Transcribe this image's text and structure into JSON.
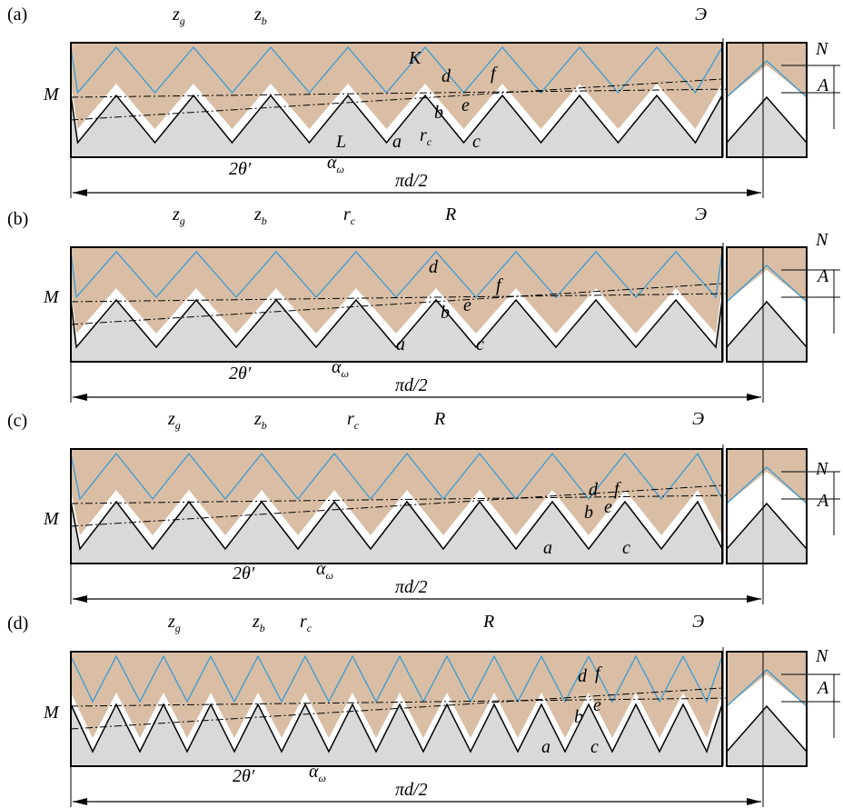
{
  "panels": [
    {
      "label": "(a)",
      "texts": [
        {
          "main": "z",
          "sub": "g"
        },
        {
          "main": "z",
          "sub": "b"
        },
        {
          "main": "Э"
        },
        {
          "main": "N"
        },
        {
          "main": "A"
        },
        {
          "main": "M"
        },
        {
          "main": "K"
        },
        {
          "main": "d"
        },
        {
          "main": "f"
        },
        {
          "main": "b"
        },
        {
          "main": "e"
        },
        {
          "main": "L"
        },
        {
          "main": "a"
        },
        {
          "main": "r",
          "sub": "c"
        },
        {
          "main": "c"
        },
        {
          "main": "2θ′"
        },
        {
          "main": "α",
          "sub": "ω"
        },
        {
          "main": "πd/2"
        }
      ]
    },
    {
      "label": "(b)",
      "texts": [
        {
          "main": "z",
          "sub": "g"
        },
        {
          "main": "z",
          "sub": "b"
        },
        {
          "main": "r",
          "sub": "c"
        },
        {
          "main": "R"
        },
        {
          "main": "Э"
        },
        {
          "main": "N"
        },
        {
          "main": "A"
        },
        {
          "main": "M"
        },
        {
          "main": "d"
        },
        {
          "main": "f"
        },
        {
          "main": "b"
        },
        {
          "main": "e"
        },
        {
          "main": "a"
        },
        {
          "main": "c"
        },
        {
          "main": "2θ′"
        },
        {
          "main": "α",
          "sub": "ω"
        },
        {
          "main": "πd/2"
        }
      ]
    },
    {
      "label": "(c)",
      "texts": [
        {
          "main": "z",
          "sub": "g"
        },
        {
          "main": "z",
          "sub": "b"
        },
        {
          "main": "r",
          "sub": "c"
        },
        {
          "main": "R"
        },
        {
          "main": "Э"
        },
        {
          "main": "N"
        },
        {
          "main": "A"
        },
        {
          "main": "M"
        },
        {
          "main": "d"
        },
        {
          "main": "f"
        },
        {
          "main": "b"
        },
        {
          "main": "e"
        },
        {
          "main": "a"
        },
        {
          "main": "c"
        },
        {
          "main": "2θ′"
        },
        {
          "main": "α",
          "sub": "ω"
        },
        {
          "main": "πd/2"
        }
      ]
    },
    {
      "label": "(d)",
      "texts": [
        {
          "main": "z",
          "sub": "g"
        },
        {
          "main": "z",
          "sub": "b"
        },
        {
          "main": "r",
          "sub": "c"
        },
        {
          "main": "R"
        },
        {
          "main": "Э"
        },
        {
          "main": "N"
        },
        {
          "main": "A"
        },
        {
          "main": "M"
        },
        {
          "main": "d"
        },
        {
          "main": "f"
        },
        {
          "main": "b"
        },
        {
          "main": "e"
        },
        {
          "main": "a"
        },
        {
          "main": "c"
        },
        {
          "main": "2θ′"
        },
        {
          "main": "α",
          "sub": "ω"
        },
        {
          "main": "πd/2"
        }
      ]
    }
  ]
}
